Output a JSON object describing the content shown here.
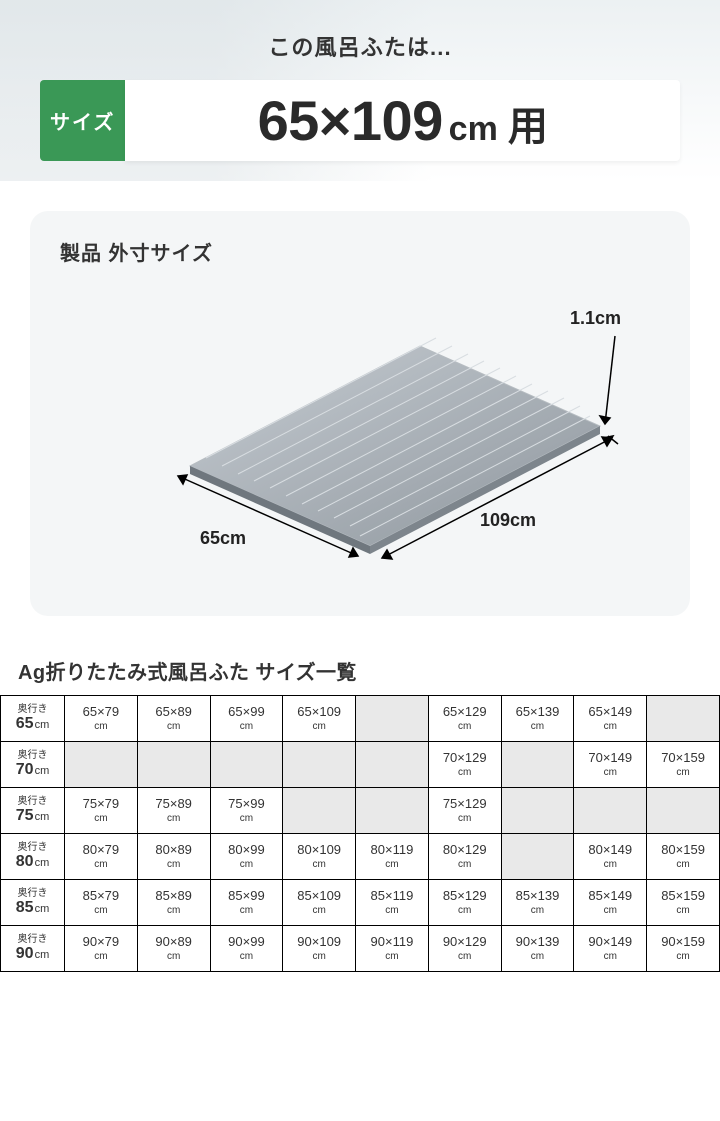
{
  "hero": {
    "tagline": "この風呂ふたは...",
    "badge": "サイズ",
    "size_main": "65×109",
    "size_unit": "cm",
    "size_suffix": "用"
  },
  "dim": {
    "title": "製品 外寸サイズ",
    "width_label": "65cm",
    "length_label": "109cm",
    "thickness_label": "1.1cm"
  },
  "table": {
    "title": "Ag折りたたみ式風呂ふた サイズ一覧",
    "row_label": "奥行き",
    "depth_unit": "cm",
    "cell_unit": "cm",
    "depths": [
      "65",
      "70",
      "75",
      "80",
      "85",
      "90"
    ],
    "rows": [
      [
        "65×79",
        "65×89",
        "65×99",
        "65×109",
        "",
        "65×129",
        "65×139",
        "65×149",
        ""
      ],
      [
        "",
        "",
        "",
        "",
        "",
        "70×129",
        "",
        "70×149",
        "70×159"
      ],
      [
        "75×79",
        "75×89",
        "75×99",
        "",
        "",
        "75×129",
        "",
        "",
        ""
      ],
      [
        "80×79",
        "80×89",
        "80×99",
        "80×109",
        "80×119",
        "80×129",
        "",
        "80×149",
        "80×159"
      ],
      [
        "85×79",
        "85×89",
        "85×99",
        "85×109",
        "85×119",
        "85×129",
        "85×139",
        "85×149",
        "85×159"
      ],
      [
        "90×79",
        "90×89",
        "90×99",
        "90×109",
        "90×119",
        "90×129",
        "90×139",
        "90×149",
        "90×159"
      ]
    ]
  },
  "colors": {
    "accent": "#3a9856",
    "panel_bg": "#f4f6f7",
    "empty_cell": "#e9e9e9",
    "product_fill": "#9da4ab",
    "product_edge": "#c8ccd0"
  }
}
